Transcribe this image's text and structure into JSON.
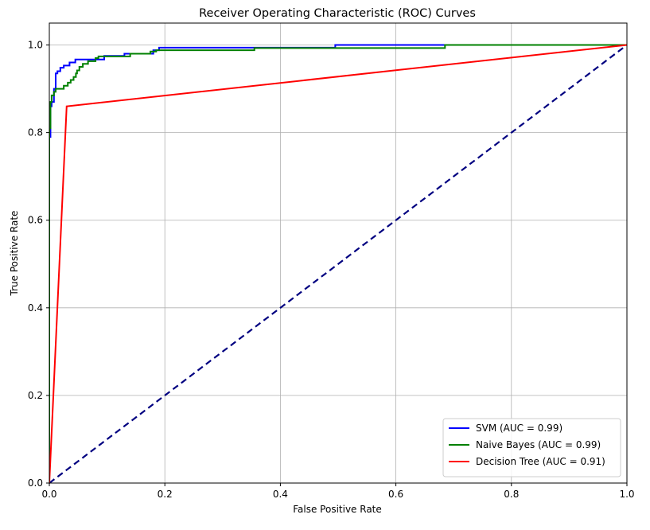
{
  "chart_data": {
    "type": "line",
    "title": "Receiver Operating Characteristic (ROC) Curves",
    "xlabel": "False Positive Rate",
    "ylabel": "True Positive Rate",
    "xlim": [
      0.0,
      1.0
    ],
    "ylim": [
      0.0,
      1.05
    ],
    "xticks": [
      0.0,
      0.2,
      0.4,
      0.6,
      0.8,
      1.0
    ],
    "yticks": [
      0.0,
      0.2,
      0.4,
      0.6,
      0.8,
      1.0
    ],
    "xtick_labels": [
      "0.0",
      "0.2",
      "0.4",
      "0.6",
      "0.8",
      "1.0"
    ],
    "ytick_labels": [
      "0.0",
      "0.2",
      "0.4",
      "0.6",
      "0.8",
      "1.0"
    ],
    "grid": true,
    "legend_position": "bottom-right",
    "series": [
      {
        "name": "SVM (AUC = 0.99)",
        "color": "#0000ff",
        "dash": "solid",
        "points": [
          [
            0.0,
            0.0
          ],
          [
            0.0,
            0.79
          ],
          [
            0.002,
            0.79
          ],
          [
            0.002,
            0.86
          ],
          [
            0.004,
            0.86
          ],
          [
            0.004,
            0.87
          ],
          [
            0.008,
            0.87
          ],
          [
            0.008,
            0.9
          ],
          [
            0.011,
            0.9
          ],
          [
            0.011,
            0.935
          ],
          [
            0.014,
            0.935
          ],
          [
            0.014,
            0.94
          ],
          [
            0.019,
            0.94
          ],
          [
            0.019,
            0.948
          ],
          [
            0.025,
            0.948
          ],
          [
            0.025,
            0.953
          ],
          [
            0.035,
            0.953
          ],
          [
            0.035,
            0.96
          ],
          [
            0.045,
            0.96
          ],
          [
            0.045,
            0.967
          ],
          [
            0.095,
            0.967
          ],
          [
            0.095,
            0.975
          ],
          [
            0.13,
            0.975
          ],
          [
            0.13,
            0.98
          ],
          [
            0.18,
            0.98
          ],
          [
            0.18,
            0.988
          ],
          [
            0.19,
            0.988
          ],
          [
            0.19,
            0.994
          ],
          [
            0.36,
            0.994
          ],
          [
            0.36,
            0.994
          ],
          [
            0.495,
            0.994
          ],
          [
            0.495,
            1.0
          ],
          [
            1.0,
            1.0
          ]
        ]
      },
      {
        "name": "Naive Bayes (AUC = 0.99)",
        "color": "#008000",
        "dash": "solid",
        "points": [
          [
            0.0,
            0.0
          ],
          [
            0.0,
            0.81
          ],
          [
            0.002,
            0.81
          ],
          [
            0.002,
            0.87
          ],
          [
            0.004,
            0.87
          ],
          [
            0.004,
            0.885
          ],
          [
            0.008,
            0.885
          ],
          [
            0.008,
            0.893
          ],
          [
            0.011,
            0.893
          ],
          [
            0.011,
            0.9
          ],
          [
            0.025,
            0.9
          ],
          [
            0.025,
            0.907
          ],
          [
            0.032,
            0.907
          ],
          [
            0.032,
            0.914
          ],
          [
            0.037,
            0.914
          ],
          [
            0.037,
            0.92
          ],
          [
            0.042,
            0.92
          ],
          [
            0.042,
            0.927
          ],
          [
            0.046,
            0.927
          ],
          [
            0.046,
            0.935
          ],
          [
            0.048,
            0.935
          ],
          [
            0.048,
            0.942
          ],
          [
            0.052,
            0.942
          ],
          [
            0.052,
            0.95
          ],
          [
            0.058,
            0.95
          ],
          [
            0.058,
            0.957
          ],
          [
            0.067,
            0.957
          ],
          [
            0.067,
            0.963
          ],
          [
            0.08,
            0.963
          ],
          [
            0.08,
            0.97
          ],
          [
            0.085,
            0.97
          ],
          [
            0.085,
            0.974
          ],
          [
            0.14,
            0.974
          ],
          [
            0.14,
            0.98
          ],
          [
            0.175,
            0.98
          ],
          [
            0.175,
            0.985
          ],
          [
            0.185,
            0.985
          ],
          [
            0.185,
            0.988
          ],
          [
            0.355,
            0.988
          ],
          [
            0.355,
            0.993
          ],
          [
            0.685,
            0.993
          ],
          [
            0.685,
            1.0
          ],
          [
            1.0,
            1.0
          ]
        ]
      },
      {
        "name": "Decision Tree (AUC = 0.91)",
        "color": "#ff0000",
        "dash": "solid",
        "points": [
          [
            0.0,
            0.0
          ],
          [
            0.03,
            0.86
          ],
          [
            1.0,
            1.0
          ]
        ]
      }
    ],
    "reference_line": {
      "color": "#000080",
      "dash": "dashed",
      "points": [
        [
          0.0,
          0.0
        ],
        [
          1.0,
          1.0
        ]
      ]
    }
  }
}
